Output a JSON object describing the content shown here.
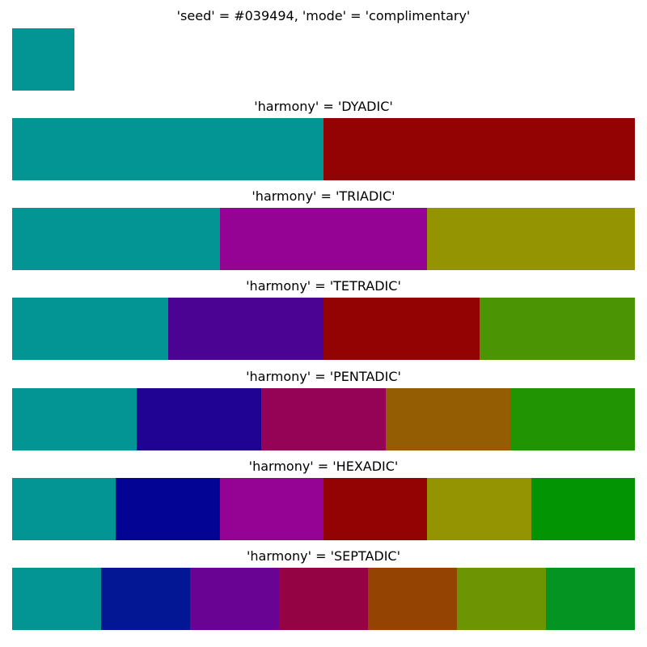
{
  "seed": {
    "title": "'seed' = #039494, 'mode' = 'complimentary'",
    "color": "#039494"
  },
  "harmonies": [
    {
      "title": "'harmony' = 'DYADIC'",
      "colors": [
        "#039494",
        "#940303"
      ]
    },
    {
      "title": "'harmony' = 'TRIADIC'",
      "colors": [
        "#039494",
        "#940394",
        "#949403"
      ]
    },
    {
      "title": "'harmony' = 'TETRADIC'",
      "colors": [
        "#039494",
        "#4B0394",
        "#940303",
        "#4B9403"
      ]
    },
    {
      "title": "'harmony' = 'PENTADIC'",
      "colors": [
        "#039494",
        "#210394",
        "#940355",
        "#945D03",
        "#219403"
      ]
    },
    {
      "title": "'harmony' = 'HEXADIC'",
      "colors": [
        "#039494",
        "#030394",
        "#940394",
        "#940303",
        "#949403",
        "#039403"
      ]
    },
    {
      "title": "'harmony' = 'SEPTADIC'",
      "colors": [
        "#039494",
        "#031794",
        "#680394",
        "#940344",
        "#944303",
        "#6C9403",
        "#039422"
      ]
    }
  ]
}
